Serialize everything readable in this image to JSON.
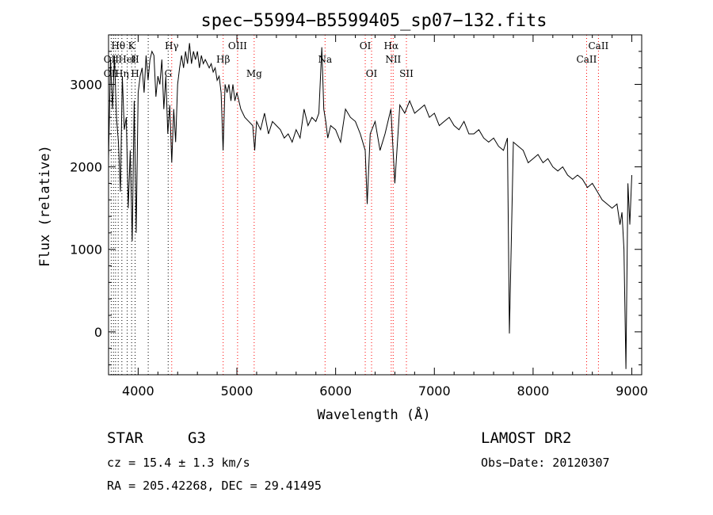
{
  "chart_data": {
    "type": "line",
    "title": "spec−55994−B5599405_sp07−132.fits",
    "xlabel": "Wavelength (Å)",
    "ylabel": "Flux (relative)",
    "xlim": [
      3700,
      9100
    ],
    "ylim": [
      -520,
      3600
    ],
    "x_ticks": [
      4000,
      5000,
      6000,
      7000,
      8000,
      9000
    ],
    "y_ticks": [
      0,
      1000,
      2000,
      3000
    ],
    "grid": false,
    "series": [
      {
        "x": [
          3700,
          3720,
          3740,
          3760,
          3780,
          3800,
          3820,
          3840,
          3860,
          3880,
          3900,
          3920,
          3940,
          3960,
          3980,
          4000,
          4020,
          4040,
          4060,
          4080,
          4100,
          4120,
          4140,
          4160,
          4180,
          4200,
          4220,
          4240,
          4260,
          4280,
          4300,
          4320,
          4340,
          4360,
          4380,
          4400,
          4420,
          4440,
          4460,
          4480,
          4500,
          4520,
          4540,
          4560,
          4580,
          4600,
          4620,
          4640,
          4660,
          4680,
          4700,
          4720,
          4740,
          4760,
          4780,
          4800,
          4820,
          4840,
          4860,
          4880,
          4900,
          4920,
          4940,
          4960,
          4980,
          5000,
          5040,
          5080,
          5120,
          5160,
          5180,
          5200,
          5240,
          5280,
          5320,
          5360,
          5400,
          5440,
          5480,
          5520,
          5560,
          5600,
          5640,
          5680,
          5720,
          5760,
          5800,
          5830,
          5860,
          5880,
          5900,
          5920,
          5950,
          6000,
          6050,
          6100,
          6150,
          6200,
          6250,
          6300,
          6320,
          6350,
          6400,
          6450,
          6500,
          6560,
          6600,
          6650,
          6700,
          6750,
          6800,
          6850,
          6900,
          6950,
          7000,
          7050,
          7100,
          7150,
          7200,
          7250,
          7300,
          7350,
          7400,
          7450,
          7500,
          7550,
          7600,
          7650,
          7700,
          7740,
          7760,
          7800,
          7850,
          7900,
          7950,
          8000,
          8050,
          8100,
          8150,
          8200,
          8250,
          8300,
          8350,
          8400,
          8450,
          8500,
          8550,
          8600,
          8650,
          8700,
          8750,
          8800,
          8850,
          8880,
          8900,
          8920,
          8940,
          8960,
          8980,
          9000
        ],
        "y": [
          2100,
          3300,
          2700,
          3350,
          2600,
          2300,
          1700,
          3100,
          2450,
          2600,
          1500,
          2200,
          1100,
          2800,
          1200,
          2900,
          3100,
          3200,
          2900,
          3350,
          3050,
          3300,
          3400,
          3350,
          2850,
          3100,
          3000,
          3300,
          2700,
          3100,
          2400,
          2750,
          2050,
          2700,
          2300,
          3000,
          3200,
          3350,
          3200,
          3400,
          3250,
          3500,
          3250,
          3400,
          3300,
          3400,
          3200,
          3350,
          3250,
          3300,
          3250,
          3200,
          3250,
          3150,
          3200,
          3050,
          3100,
          2900,
          2200,
          3000,
          2900,
          3000,
          2800,
          3000,
          2800,
          2900,
          2700,
          2600,
          2550,
          2500,
          2200,
          2550,
          2450,
          2650,
          2400,
          2550,
          2500,
          2450,
          2350,
          2400,
          2300,
          2450,
          2350,
          2700,
          2500,
          2600,
          2550,
          2650,
          3450,
          2700,
          2550,
          2350,
          2500,
          2450,
          2300,
          2700,
          2600,
          2550,
          2400,
          2200,
          1550,
          2400,
          2550,
          2200,
          2400,
          2700,
          1800,
          2750,
          2650,
          2800,
          2650,
          2700,
          2750,
          2600,
          2650,
          2500,
          2550,
          2600,
          2500,
          2450,
          2550,
          2400,
          2400,
          2450,
          2350,
          2300,
          2350,
          2250,
          2200,
          2350,
          -20,
          2300,
          2250,
          2200,
          2050,
          2100,
          2150,
          2050,
          2100,
          2000,
          1950,
          2000,
          1900,
          1850,
          1900,
          1850,
          1750,
          1800,
          1700,
          1600,
          1550,
          1500,
          1550,
          1300,
          1450,
          1000,
          -450,
          1800,
          1300,
          1900
        ]
      }
    ],
    "line_labels": [
      {
        "name": "Hθ",
        "x": 3798,
        "row": 0
      },
      {
        "name": "K",
        "x": 3934,
        "row": 0
      },
      {
        "name": "Hγ",
        "x": 4340,
        "row": 0
      },
      {
        "name": "OIII",
        "x": 5007,
        "row": 0
      },
      {
        "name": "OI",
        "x": 6300,
        "row": 0
      },
      {
        "name": "Hα",
        "x": 6563,
        "row": 0
      },
      {
        "name": "CaII",
        "x": 8662,
        "row": 0
      },
      {
        "name": "OII",
        "x": 3727,
        "row": 1
      },
      {
        "name": "HeI",
        "x": 3889,
        "row": 1
      },
      {
        "name": "H",
        "x": 3969,
        "row": 1
      },
      {
        "name": "Hβ",
        "x": 4861,
        "row": 1
      },
      {
        "name": "Na",
        "x": 5893,
        "row": 1
      },
      {
        "name": "NII",
        "x": 6583,
        "row": 1
      },
      {
        "name": "CaII",
        "x": 8542,
        "row": 1
      },
      {
        "name": "OII",
        "x": 3727,
        "row": 2
      },
      {
        "name": "Hη",
        "x": 3835,
        "row": 2
      },
      {
        "name": "H",
        "x": 3969,
        "row": 2
      },
      {
        "name": "G",
        "x": 4304,
        "row": 2
      },
      {
        "name": "Mg",
        "x": 5175,
        "row": 2
      },
      {
        "name": "OI",
        "x": 6364,
        "row": 2
      },
      {
        "name": "SII",
        "x": 6717,
        "row": 2
      }
    ],
    "line_markers": [
      {
        "x": 3727,
        "color": "#000000"
      },
      {
        "x": 3750,
        "color": "#000000"
      },
      {
        "x": 3771,
        "color": "#000000"
      },
      {
        "x": 3798,
        "color": "#000000"
      },
      {
        "x": 3835,
        "color": "#000000"
      },
      {
        "x": 3889,
        "color": "#000000"
      },
      {
        "x": 3934,
        "color": "#000000"
      },
      {
        "x": 3969,
        "color": "#000000"
      },
      {
        "x": 4102,
        "color": "#000000"
      },
      {
        "x": 4304,
        "color": "#000000"
      },
      {
        "x": 4340,
        "color": "#ff0000"
      },
      {
        "x": 4861,
        "color": "#ff0000"
      },
      {
        "x": 5007,
        "color": "#ff0000"
      },
      {
        "x": 5175,
        "color": "#ff0000"
      },
      {
        "x": 5893,
        "color": "#ff0000"
      },
      {
        "x": 6300,
        "color": "#ff0000"
      },
      {
        "x": 6364,
        "color": "#ff0000"
      },
      {
        "x": 6563,
        "color": "#ff0000"
      },
      {
        "x": 6583,
        "color": "#ff0000"
      },
      {
        "x": 6717,
        "color": "#ff0000"
      },
      {
        "x": 8542,
        "color": "#ff0000"
      },
      {
        "x": 8662,
        "color": "#ff0000"
      }
    ]
  },
  "info": {
    "object_class": "STAR",
    "subclass": "G3",
    "survey": "LAMOST DR2",
    "redshift": "cz = 15.4 ± 1.3 km/s",
    "obs_date": "Obs−Date: 20120307",
    "coords": "RA = 205.42268, DEC =  29.41495"
  }
}
